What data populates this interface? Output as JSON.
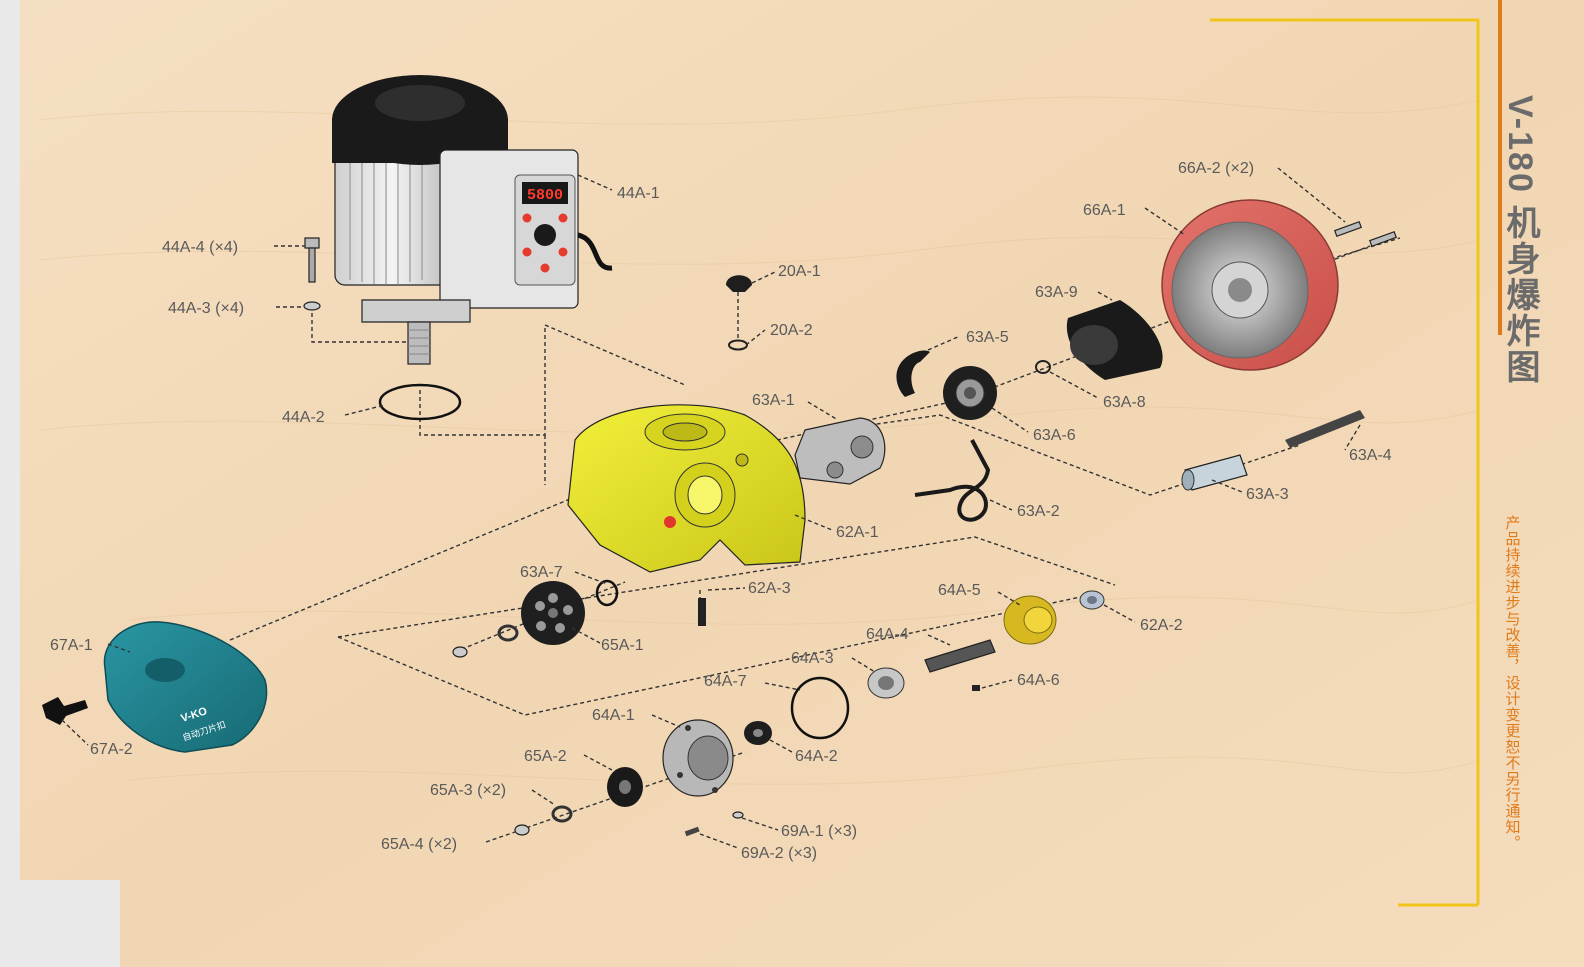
{
  "sidebar": {
    "title": "V-180 机身爆炸图",
    "note": "产品持续进步与改善，设计变更恕不另行通知。"
  },
  "motor_display": {
    "text": "5800"
  },
  "cover_text": {
    "line1": "V-KO",
    "line2": "自动刀片扣"
  },
  "colors": {
    "wood": "#f3dcbc",
    "accent_orange": "#e07b1a",
    "accent_yellow": "#f0c419",
    "housing_yellow": "#e8e628",
    "cover_teal": "#1f7f8c",
    "wheel_red": "#d8605a",
    "title_gray": "#6b6b6b"
  },
  "labels": [
    {
      "id": "44A-1",
      "text": "44A-1"
    },
    {
      "id": "44A-4",
      "text": "44A-4 (×4)"
    },
    {
      "id": "44A-3",
      "text": "44A-3 (×4)"
    },
    {
      "id": "44A-2",
      "text": "44A-2"
    },
    {
      "id": "20A-1",
      "text": "20A-1"
    },
    {
      "id": "20A-2",
      "text": "20A-2"
    },
    {
      "id": "66A-2",
      "text": "66A-2 (×2)"
    },
    {
      "id": "66A-1",
      "text": "66A-1"
    },
    {
      "id": "63A-9",
      "text": "63A-9"
    },
    {
      "id": "63A-5",
      "text": "63A-5"
    },
    {
      "id": "63A-8",
      "text": "63A-8"
    },
    {
      "id": "63A-1",
      "text": "63A-1"
    },
    {
      "id": "63A-6",
      "text": "63A-6"
    },
    {
      "id": "63A-4",
      "text": "63A-4"
    },
    {
      "id": "63A-3",
      "text": "63A-3"
    },
    {
      "id": "63A-2",
      "text": "63A-2"
    },
    {
      "id": "62A-1",
      "text": "62A-1"
    },
    {
      "id": "63A-7",
      "text": "63A-7"
    },
    {
      "id": "62A-3",
      "text": "62A-3"
    },
    {
      "id": "65A-1",
      "text": "65A-1"
    },
    {
      "id": "67A-1",
      "text": "67A-1"
    },
    {
      "id": "67A-2",
      "text": "67A-2"
    },
    {
      "id": "64A-5",
      "text": "64A-5"
    },
    {
      "id": "62A-2",
      "text": "62A-2"
    },
    {
      "id": "64A-4",
      "text": "64A-4"
    },
    {
      "id": "64A-3",
      "text": "64A-3"
    },
    {
      "id": "64A-6",
      "text": "64A-6"
    },
    {
      "id": "64A-7",
      "text": "64A-7"
    },
    {
      "id": "64A-1",
      "text": "64A-1"
    },
    {
      "id": "64A-2",
      "text": "64A-2"
    },
    {
      "id": "65A-2",
      "text": "65A-2"
    },
    {
      "id": "65A-3",
      "text": "65A-3 (×2)"
    },
    {
      "id": "65A-4",
      "text": "65A-4 (×2)"
    },
    {
      "id": "69A-1",
      "text": "69A-1 (×3)"
    },
    {
      "id": "69A-2",
      "text": "69A-2 (×3)"
    }
  ]
}
